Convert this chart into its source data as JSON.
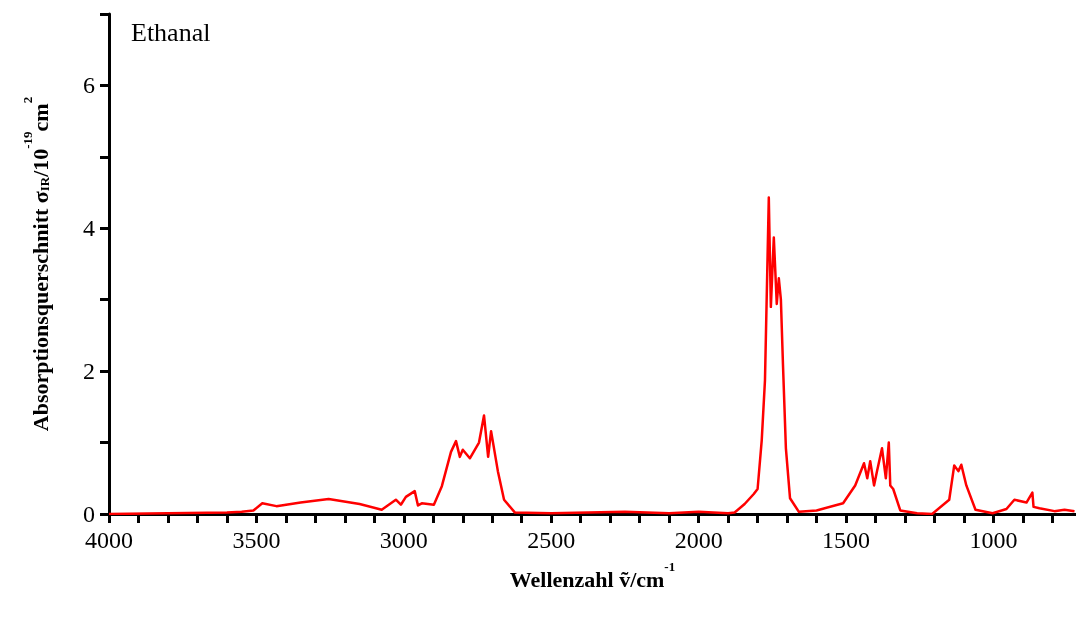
{
  "chart_data": {
    "type": "line",
    "title": "Ethanal",
    "xlabel": "Wellenzahl ṽ/cm$^{-1}$",
    "ylabel": "Absorptionsquerschnitt σ$_{IR}$/10$^{-19}$cm$^{2}$",
    "xlim": [
      4000,
      720
    ],
    "ylim": [
      0,
      7
    ],
    "xticks": [
      4000,
      {
        "value": 3900,
        "label": null
      },
      {
        "value": 3800,
        "label": null
      },
      {
        "value": 3700,
        "label": null
      },
      {
        "value": 3600,
        "label": null
      },
      3500,
      {
        "value": 3400,
        "label": null
      },
      {
        "value": 3300,
        "label": null
      },
      {
        "value": 3200,
        "label": null
      },
      {
        "value": 3100,
        "label": null
      },
      3000,
      {
        "value": 2900,
        "label": null
      },
      {
        "value": 2800,
        "label": null
      },
      {
        "value": 2700,
        "label": null
      },
      {
        "value": 2600,
        "label": null
      },
      2500,
      {
        "value": 2400,
        "label": null
      },
      {
        "value": 2300,
        "label": null
      },
      {
        "value": 2200,
        "label": null
      },
      {
        "value": 2100,
        "label": null
      },
      2000,
      {
        "value": 1900,
        "label": null
      },
      {
        "value": 1800,
        "label": null
      },
      {
        "value": 1700,
        "label": null
      },
      {
        "value": 1600,
        "label": null
      },
      1500,
      {
        "value": 1400,
        "label": null
      },
      {
        "value": 1300,
        "label": null
      },
      {
        "value": 1200,
        "label": null
      },
      {
        "value": 1100,
        "label": null
      },
      1000,
      {
        "value": 900,
        "label": null
      },
      {
        "value": 800,
        "label": null
      }
    ],
    "yticks": [
      0,
      {
        "value": 1,
        "label": null
      },
      2,
      {
        "value": 3,
        "label": null
      },
      4,
      {
        "value": 5,
        "label": null
      },
      6,
      {
        "value": 7,
        "label": null
      }
    ],
    "grid": false,
    "marker": "none",
    "line_style": "solid",
    "series": [
      {
        "color": "#ff0000",
        "x": [
          4000,
          3800,
          3600,
          3550,
          3510,
          3480,
          3432,
          3350,
          3255,
          3150,
          3075,
          3027,
          3010,
          2993,
          2963,
          2952,
          2939,
          2898,
          2871,
          2840,
          2823,
          2810,
          2800,
          2776,
          2745,
          2728,
          2714,
          2704,
          2681,
          2660,
          2623,
          2500,
          2250,
          2100,
          2000,
          1900,
          1878,
          1844,
          1813,
          1800,
          1786,
          1775,
          1762,
          1755,
          1745,
          1735,
          1728,
          1721,
          1714,
          1704,
          1690,
          1660,
          1600,
          1510,
          1469,
          1439,
          1428,
          1418,
          1405,
          1395,
          1378,
          1365,
          1355,
          1350,
          1340,
          1316,
          1259,
          1208,
          1150,
          1133,
          1119,
          1109,
          1092,
          1061,
          1003,
          956,
          929,
          888,
          868,
          864,
          844,
          793,
          759,
          725
        ],
        "values": [
          0,
          0.01,
          0.02,
          0.03,
          0.05,
          0.15,
          0.11,
          0.16,
          0.21,
          0.14,
          0.06,
          0.2,
          0.13,
          0.24,
          0.32,
          0.12,
          0.15,
          0.13,
          0.39,
          0.87,
          1.02,
          0.8,
          0.9,
          0.78,
          1.0,
          1.38,
          0.8,
          1.16,
          0.6,
          0.2,
          0.02,
          0.01,
          0.03,
          0.01,
          0.03,
          0.01,
          0.02,
          0.14,
          0.28,
          0.35,
          1.03,
          1.87,
          4.43,
          2.9,
          3.87,
          2.94,
          3.3,
          3.0,
          2.1,
          0.92,
          0.22,
          0.03,
          0.05,
          0.15,
          0.4,
          0.71,
          0.5,
          0.74,
          0.4,
          0.6,
          0.92,
          0.5,
          1.0,
          0.4,
          0.35,
          0.05,
          0.01,
          0.0,
          0.2,
          0.68,
          0.6,
          0.69,
          0.4,
          0.06,
          0.01,
          0.07,
          0.2,
          0.16,
          0.3,
          0.1,
          0.08,
          0.04,
          0.06,
          0.04
        ]
      }
    ]
  }
}
